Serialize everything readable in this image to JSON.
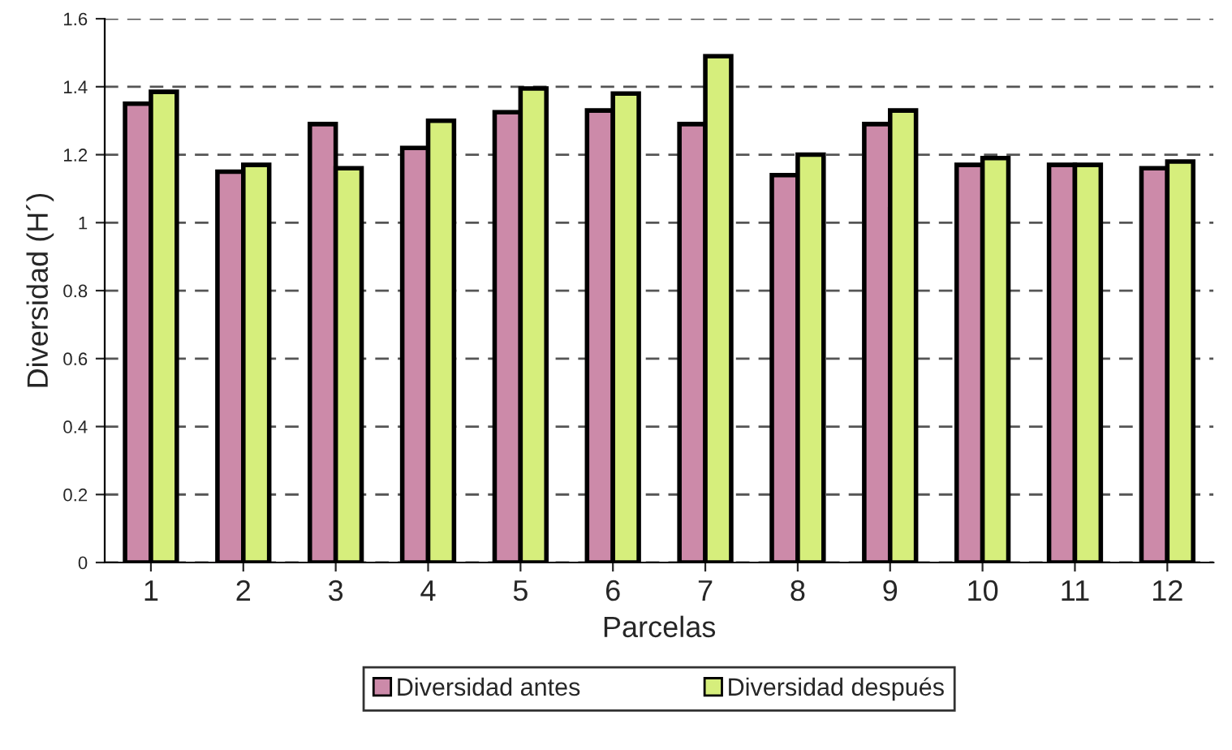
{
  "chart_data": {
    "type": "bar",
    "xlabel": "Parcelas",
    "ylabel": "Diversidad (H´)",
    "categories": [
      "1",
      "2",
      "3",
      "4",
      "5",
      "6",
      "7",
      "8",
      "9",
      "10",
      "11",
      "12"
    ],
    "series": [
      {
        "name": "Diversidad antes",
        "color": "#cc8aa9",
        "values": [
          1.35,
          1.15,
          1.29,
          1.22,
          1.325,
          1.33,
          1.29,
          1.14,
          1.29,
          1.17,
          1.17,
          1.16
        ]
      },
      {
        "name": "Diversidad después",
        "color": "#d6ee7c",
        "values": [
          1.385,
          1.17,
          1.16,
          1.3,
          1.395,
          1.38,
          1.49,
          1.2,
          1.33,
          1.19,
          1.17,
          1.18
        ]
      }
    ],
    "ylim": [
      0,
      1.6
    ],
    "yticks": [
      0,
      0.2,
      0.4,
      0.6,
      0.8,
      1,
      1.2,
      1.4,
      1.6
    ],
    "grid": "y",
    "legend": "bottom"
  }
}
